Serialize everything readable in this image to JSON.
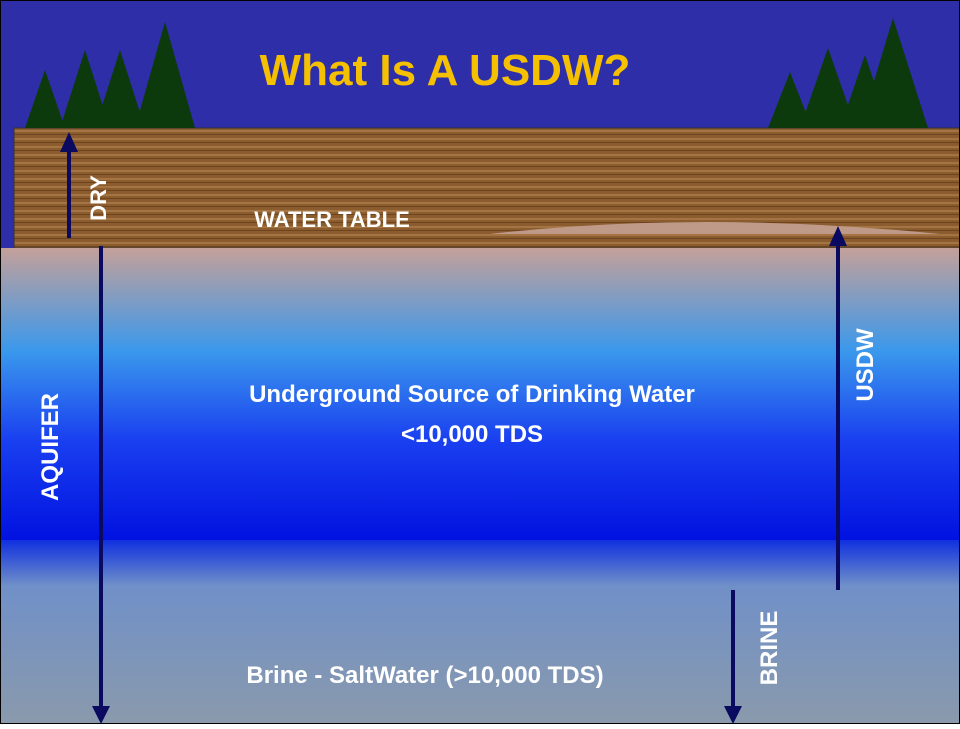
{
  "title": "What Is A USDW?",
  "labels": {
    "dry": "DRY",
    "water_table": "WATER TABLE",
    "aquifer": "AQUIFER",
    "usdw": "USDW",
    "brine": "BRINE"
  },
  "usdw_description": {
    "line1": "Underground Source of Drinking Water",
    "line2": "<10,000 TDS"
  },
  "brine_description": "Brine - SaltWater (>10,000 TDS)"
}
